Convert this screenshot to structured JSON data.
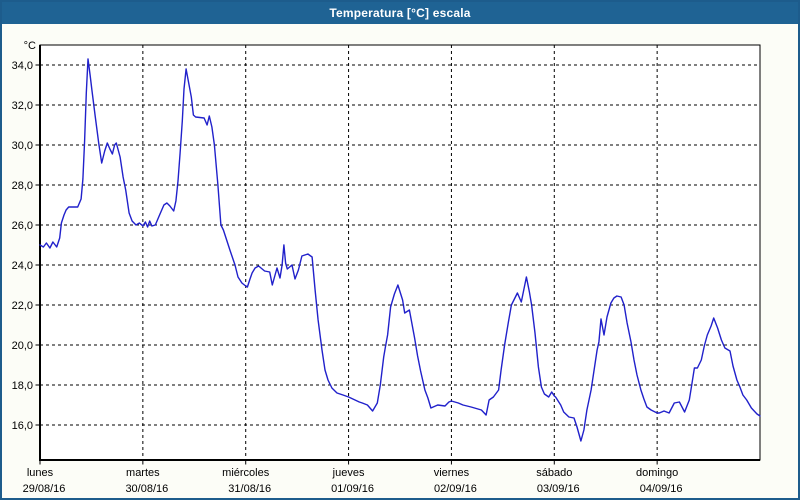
{
  "window": {
    "title": "Temperatura [°C] escala"
  },
  "colors": {
    "title_bar": "#1f6394",
    "window_border": "#1d5c8c",
    "background": "#fcfdf7",
    "plot_background": "#ffffff",
    "line": "#2121cb",
    "grid": "#000000",
    "text": "#000000"
  },
  "chart_data": {
    "type": "line",
    "title": "Temperatura [°C] escala",
    "grid": {
      "style": "dashed",
      "horizontal": true,
      "vertical": true
    },
    "legend": "none",
    "y_axis": {
      "unit_label": "°C",
      "min": 14.25,
      "max": 35.0,
      "ticks": [
        {
          "value": 34,
          "label": "34,0"
        },
        {
          "value": 32,
          "label": "32,0"
        },
        {
          "value": 30,
          "label": "30,0"
        },
        {
          "value": 28,
          "label": "28,0"
        },
        {
          "value": 26,
          "label": "26,0"
        },
        {
          "value": 24,
          "label": "24,0"
        },
        {
          "value": 22,
          "label": "22,0"
        },
        {
          "value": 20,
          "label": "20,0"
        },
        {
          "value": 18,
          "label": "18,0"
        },
        {
          "value": 16,
          "label": "16,0"
        }
      ]
    },
    "x_axis": {
      "range_hours": [
        0,
        168
      ],
      "hours_per_day": 24,
      "days": [
        {
          "name": "lunes",
          "date": "29/08/16"
        },
        {
          "name": "martes",
          "date": "30/08/16"
        },
        {
          "name": "miércoles",
          "date": "31/08/16"
        },
        {
          "name": "jueves",
          "date": "01/09/16"
        },
        {
          "name": "viernes",
          "date": "02/09/16"
        },
        {
          "name": "sábado",
          "date": "03/09/16"
        },
        {
          "name": "domingo",
          "date": "04/09/16"
        }
      ]
    },
    "series": [
      {
        "name": "Temperatura [°C]",
        "color": "#2121cb",
        "points": [
          [
            0,
            25.0
          ],
          [
            0.8,
            24.9
          ],
          [
            1.5,
            25.1
          ],
          [
            2.3,
            24.85
          ],
          [
            3.0,
            25.15
          ],
          [
            3.9,
            24.9
          ],
          [
            4.6,
            25.35
          ],
          [
            5.0,
            26.1
          ],
          [
            5.6,
            26.5
          ],
          [
            6.1,
            26.75
          ],
          [
            6.7,
            26.9
          ],
          [
            8.8,
            26.9
          ],
          [
            9.6,
            27.3
          ],
          [
            10.0,
            28.3
          ],
          [
            10.4,
            30.2
          ],
          [
            10.8,
            32.6
          ],
          [
            11.2,
            34.3
          ],
          [
            11.7,
            33.5
          ],
          [
            12.1,
            32.75
          ],
          [
            12.9,
            31.4
          ],
          [
            13.7,
            30.1
          ],
          [
            14.4,
            29.1
          ],
          [
            15.1,
            29.7
          ],
          [
            15.7,
            30.1
          ],
          [
            16.3,
            29.8
          ],
          [
            16.9,
            29.55
          ],
          [
            17.4,
            30.0
          ],
          [
            17.8,
            30.1
          ],
          [
            18.7,
            29.4
          ],
          [
            19.4,
            28.4
          ],
          [
            20.0,
            27.75
          ],
          [
            20.8,
            26.6
          ],
          [
            21.5,
            26.2
          ],
          [
            22.4,
            26.0
          ],
          [
            23.2,
            26.1
          ],
          [
            24.0,
            25.95
          ],
          [
            24.6,
            26.15
          ],
          [
            25.1,
            25.9
          ],
          [
            25.6,
            26.2
          ],
          [
            26.1,
            25.95
          ],
          [
            26.9,
            26.0
          ],
          [
            28.0,
            26.55
          ],
          [
            28.9,
            27.0
          ],
          [
            29.6,
            27.1
          ],
          [
            30.3,
            26.95
          ],
          [
            31.2,
            26.7
          ],
          [
            31.7,
            27.2
          ],
          [
            32.2,
            28.2
          ],
          [
            32.7,
            29.6
          ],
          [
            33.2,
            31.2
          ],
          [
            33.6,
            32.8
          ],
          [
            34.1,
            33.8
          ],
          [
            34.7,
            33.1
          ],
          [
            35.3,
            32.4
          ],
          [
            35.8,
            31.5
          ],
          [
            36.3,
            31.4
          ],
          [
            38.3,
            31.35
          ],
          [
            39.0,
            31.0
          ],
          [
            39.5,
            31.45
          ],
          [
            40.1,
            30.9
          ],
          [
            40.7,
            30.0
          ],
          [
            41.5,
            28.0
          ],
          [
            42.2,
            26.0
          ],
          [
            42.8,
            25.75
          ],
          [
            44.3,
            24.75
          ],
          [
            45.5,
            24.0
          ],
          [
            46.2,
            23.4
          ],
          [
            47.1,
            23.1
          ],
          [
            48.0,
            22.95
          ],
          [
            48.4,
            22.9
          ],
          [
            49.0,
            23.3
          ],
          [
            49.5,
            23.6
          ],
          [
            50.2,
            23.85
          ],
          [
            51.0,
            23.95
          ],
          [
            52.4,
            23.7
          ],
          [
            53.6,
            23.65
          ],
          [
            54.2,
            23.0
          ],
          [
            55.3,
            23.85
          ],
          [
            56.0,
            23.35
          ],
          [
            56.5,
            24.0
          ],
          [
            56.9,
            25.0
          ],
          [
            57.3,
            24.1
          ],
          [
            57.7,
            23.8
          ],
          [
            58.8,
            24.0
          ],
          [
            59.5,
            23.3
          ],
          [
            60.3,
            23.75
          ],
          [
            61.1,
            24.45
          ],
          [
            62.5,
            24.55
          ],
          [
            63.5,
            24.4
          ],
          [
            64.2,
            22.75
          ],
          [
            64.9,
            21.25
          ],
          [
            65.8,
            19.75
          ],
          [
            66.5,
            18.75
          ],
          [
            67.2,
            18.25
          ],
          [
            68.1,
            17.85
          ],
          [
            69.3,
            17.6
          ],
          [
            70.7,
            17.5
          ],
          [
            72.0,
            17.4
          ],
          [
            74.5,
            17.15
          ],
          [
            75.2,
            17.1
          ],
          [
            76.4,
            17.0
          ],
          [
            77.6,
            16.7
          ],
          [
            78.7,
            17.1
          ],
          [
            79.4,
            18.0
          ],
          [
            80.2,
            19.4
          ],
          [
            80.6,
            19.9
          ],
          [
            81.1,
            20.5
          ],
          [
            81.8,
            21.9
          ],
          [
            82.7,
            22.55
          ],
          [
            83.5,
            23.0
          ],
          [
            84.6,
            22.25
          ],
          [
            85.1,
            21.6
          ],
          [
            86.2,
            21.75
          ],
          [
            87.4,
            20.35
          ],
          [
            88.1,
            19.45
          ],
          [
            88.8,
            18.7
          ],
          [
            89.8,
            17.75
          ],
          [
            90.5,
            17.35
          ],
          [
            91.2,
            16.85
          ],
          [
            92.8,
            17.0
          ],
          [
            94.5,
            16.95
          ],
          [
            95.4,
            17.15
          ],
          [
            96.0,
            17.2
          ],
          [
            97.6,
            17.1
          ],
          [
            98.7,
            17.0
          ],
          [
            100.6,
            16.9
          ],
          [
            103.0,
            16.75
          ],
          [
            104.1,
            16.5
          ],
          [
            104.8,
            17.25
          ],
          [
            105.8,
            17.4
          ],
          [
            107.0,
            17.75
          ],
          [
            107.6,
            18.75
          ],
          [
            108.4,
            20.0
          ],
          [
            109.3,
            21.15
          ],
          [
            110.0,
            22.0
          ],
          [
            111.4,
            22.6
          ],
          [
            112.3,
            22.15
          ],
          [
            113.5,
            23.4
          ],
          [
            114.2,
            22.65
          ],
          [
            114.7,
            22.0
          ],
          [
            115.5,
            20.6
          ],
          [
            115.9,
            19.75
          ],
          [
            116.3,
            18.9
          ],
          [
            117.0,
            17.9
          ],
          [
            117.7,
            17.55
          ],
          [
            118.7,
            17.4
          ],
          [
            119.4,
            17.65
          ],
          [
            120.0,
            17.45
          ],
          [
            120.3,
            17.4
          ],
          [
            121.5,
            17.0
          ],
          [
            122.2,
            16.65
          ],
          [
            123.4,
            16.4
          ],
          [
            124.6,
            16.35
          ],
          [
            125.3,
            15.9
          ],
          [
            126.2,
            15.2
          ],
          [
            126.9,
            15.75
          ],
          [
            127.6,
            16.75
          ],
          [
            128.6,
            17.75
          ],
          [
            129.3,
            18.75
          ],
          [
            130.0,
            19.75
          ],
          [
            130.4,
            20.15
          ],
          [
            130.9,
            21.3
          ],
          [
            131.6,
            20.5
          ],
          [
            132.3,
            21.4
          ],
          [
            133.2,
            22.1
          ],
          [
            133.9,
            22.35
          ],
          [
            134.6,
            22.45
          ],
          [
            135.6,
            22.4
          ],
          [
            136.3,
            22.0
          ],
          [
            137.0,
            21.1
          ],
          [
            137.9,
            20.15
          ],
          [
            138.6,
            19.25
          ],
          [
            139.3,
            18.5
          ],
          [
            140.2,
            17.75
          ],
          [
            140.9,
            17.3
          ],
          [
            141.6,
            16.9
          ],
          [
            142.6,
            16.75
          ],
          [
            144.0,
            16.6
          ],
          [
            144.5,
            16.6
          ],
          [
            145.6,
            16.7
          ],
          [
            146.8,
            16.6
          ],
          [
            148.0,
            17.1
          ],
          [
            149.2,
            17.15
          ],
          [
            150.4,
            16.65
          ],
          [
            151.5,
            17.25
          ],
          [
            152.0,
            17.9
          ],
          [
            152.7,
            18.85
          ],
          [
            153.4,
            18.85
          ],
          [
            154.3,
            19.25
          ],
          [
            155.0,
            19.95
          ],
          [
            155.7,
            20.5
          ],
          [
            156.6,
            20.95
          ],
          [
            157.2,
            21.35
          ],
          [
            158.1,
            20.85
          ],
          [
            159.0,
            20.25
          ],
          [
            159.8,
            19.85
          ],
          [
            161.0,
            19.7
          ],
          [
            161.7,
            18.95
          ],
          [
            162.6,
            18.25
          ],
          [
            163.3,
            17.9
          ],
          [
            164.0,
            17.5
          ],
          [
            164.9,
            17.25
          ],
          [
            166.0,
            16.85
          ],
          [
            167.3,
            16.55
          ],
          [
            168.0,
            16.45
          ]
        ]
      }
    ]
  }
}
